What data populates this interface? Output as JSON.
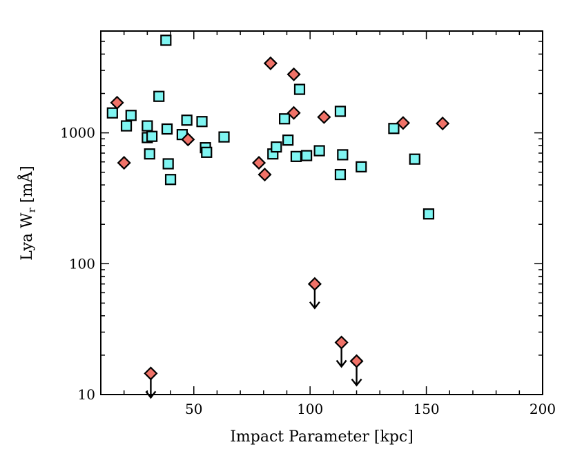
{
  "chart_data": {
    "type": "scatter",
    "title": "",
    "xlabel": "Impact Parameter [kpc]",
    "ylabel_main": "Lya W",
    "ylabel_sub": "r",
    "ylabel_unit": " [mÅ]",
    "xlim": [
      10,
      200
    ],
    "ylim": [
      10,
      6000
    ],
    "y_scale": "log",
    "grid": false,
    "x_ticks": [
      50,
      100,
      150,
      200
    ],
    "x_tick_labels": [
      "50",
      "100",
      "150",
      "200"
    ],
    "y_ticks": [
      10,
      100,
      1000
    ],
    "y_tick_labels": [
      "10",
      "100",
      "1000"
    ],
    "series": [
      {
        "marker": "square",
        "color": "#7ff5f2",
        "points": [
          {
            "x": 15,
            "y": 1420
          },
          {
            "x": 21,
            "y": 1130
          },
          {
            "x": 23,
            "y": 1360
          },
          {
            "x": 30,
            "y": 1130
          },
          {
            "x": 30,
            "y": 920
          },
          {
            "x": 32,
            "y": 940
          },
          {
            "x": 31,
            "y": 690
          },
          {
            "x": 35,
            "y": 1900
          },
          {
            "x": 38,
            "y": 5100
          },
          {
            "x": 38.5,
            "y": 1070
          },
          {
            "x": 39,
            "y": 580
          },
          {
            "x": 40,
            "y": 440
          },
          {
            "x": 45,
            "y": 970
          },
          {
            "x": 47,
            "y": 1250
          },
          {
            "x": 53.5,
            "y": 1220
          },
          {
            "x": 55,
            "y": 770
          },
          {
            "x": 55.5,
            "y": 710
          },
          {
            "x": 63,
            "y": 930
          },
          {
            "x": 84,
            "y": 690
          },
          {
            "x": 85.5,
            "y": 780
          },
          {
            "x": 89,
            "y": 1280
          },
          {
            "x": 90.5,
            "y": 880
          },
          {
            "x": 94,
            "y": 660
          },
          {
            "x": 95.5,
            "y": 2150
          },
          {
            "x": 98.5,
            "y": 670
          },
          {
            "x": 104,
            "y": 730
          },
          {
            "x": 113,
            "y": 1460
          },
          {
            "x": 113,
            "y": 480
          },
          {
            "x": 114,
            "y": 680
          },
          {
            "x": 122,
            "y": 550
          },
          {
            "x": 136,
            "y": 1080
          },
          {
            "x": 145,
            "y": 630
          },
          {
            "x": 151,
            "y": 240
          }
        ]
      },
      {
        "marker": "diamond",
        "color": "#f07268",
        "points": [
          {
            "x": 17,
            "y": 1700
          },
          {
            "x": 20,
            "y": 590
          },
          {
            "x": 47.5,
            "y": 890
          },
          {
            "x": 78,
            "y": 590
          },
          {
            "x": 80.5,
            "y": 480
          },
          {
            "x": 83,
            "y": 3400
          },
          {
            "x": 93,
            "y": 2800
          },
          {
            "x": 93,
            "y": 1420
          },
          {
            "x": 106,
            "y": 1320
          },
          {
            "x": 140,
            "y": 1190
          },
          {
            "x": 157,
            "y": 1180
          }
        ]
      },
      {
        "marker": "diamond-upper-limit",
        "color": "#f07268",
        "points": [
          {
            "x": 31.5,
            "y": 14.5
          },
          {
            "x": 102,
            "y": 70
          },
          {
            "x": 113.5,
            "y": 25
          },
          {
            "x": 120,
            "y": 18
          }
        ]
      }
    ]
  }
}
